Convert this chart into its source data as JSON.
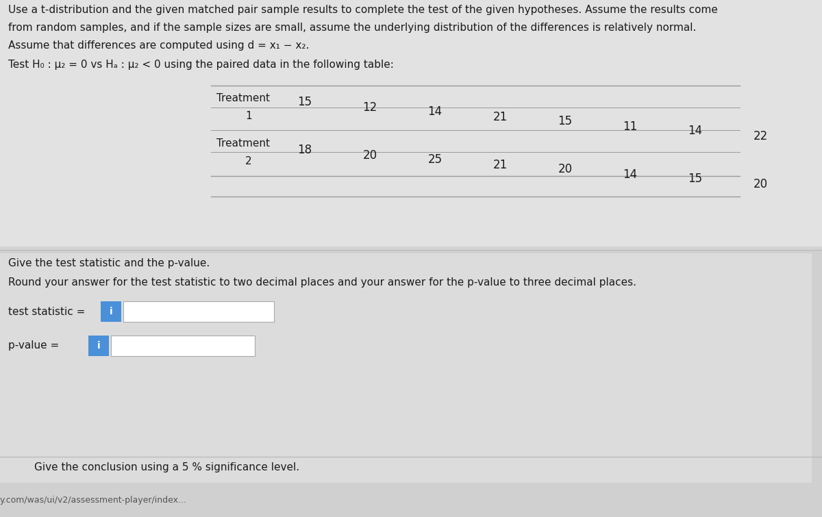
{
  "bg_top_color": "#d8d8d8",
  "bg_bottom_color": "#c8c8c8",
  "white_area_color": "#e8e8e8",
  "title_line1": "Use a t-distribution and the given matched pair sample results to complete the test of the given hypotheses. Assume the results come",
  "title_line2": "from random samples, and if the sample sizes are small, assume the underlying distribution of the differences is relatively normal.",
  "title_line3": "Assume that differences are computed using d = x₁ − x₂.",
  "hypothesis_line": "Test H₀ : μ₂ = 0 vs Hₐ : μ₂ < 0 using the paired data in the following table:",
  "treatment1_values": [
    15,
    12,
    14,
    21,
    15,
    11,
    14,
    22
  ],
  "treatment2_values": [
    18,
    20,
    25,
    21,
    20,
    14,
    15,
    20
  ],
  "give_text": "Give the test statistic and the p-value.",
  "round_text": "Round your answer for the test statistic to two decimal places and your answer for the p-value to three decimal places.",
  "test_stat_label": "test statistic =",
  "pvalue_label": "p-value =",
  "conclusion_text": "Give the conclusion using a 5 % significance level.",
  "url_text": "y.com/was/ui/v2/assessment-player/index...",
  "info_color": "#4a90d9",
  "text_dark": "#1a1a1a",
  "text_mid": "#333333",
  "line_color": "#999999",
  "sep_line_color": "#bbbbbb"
}
